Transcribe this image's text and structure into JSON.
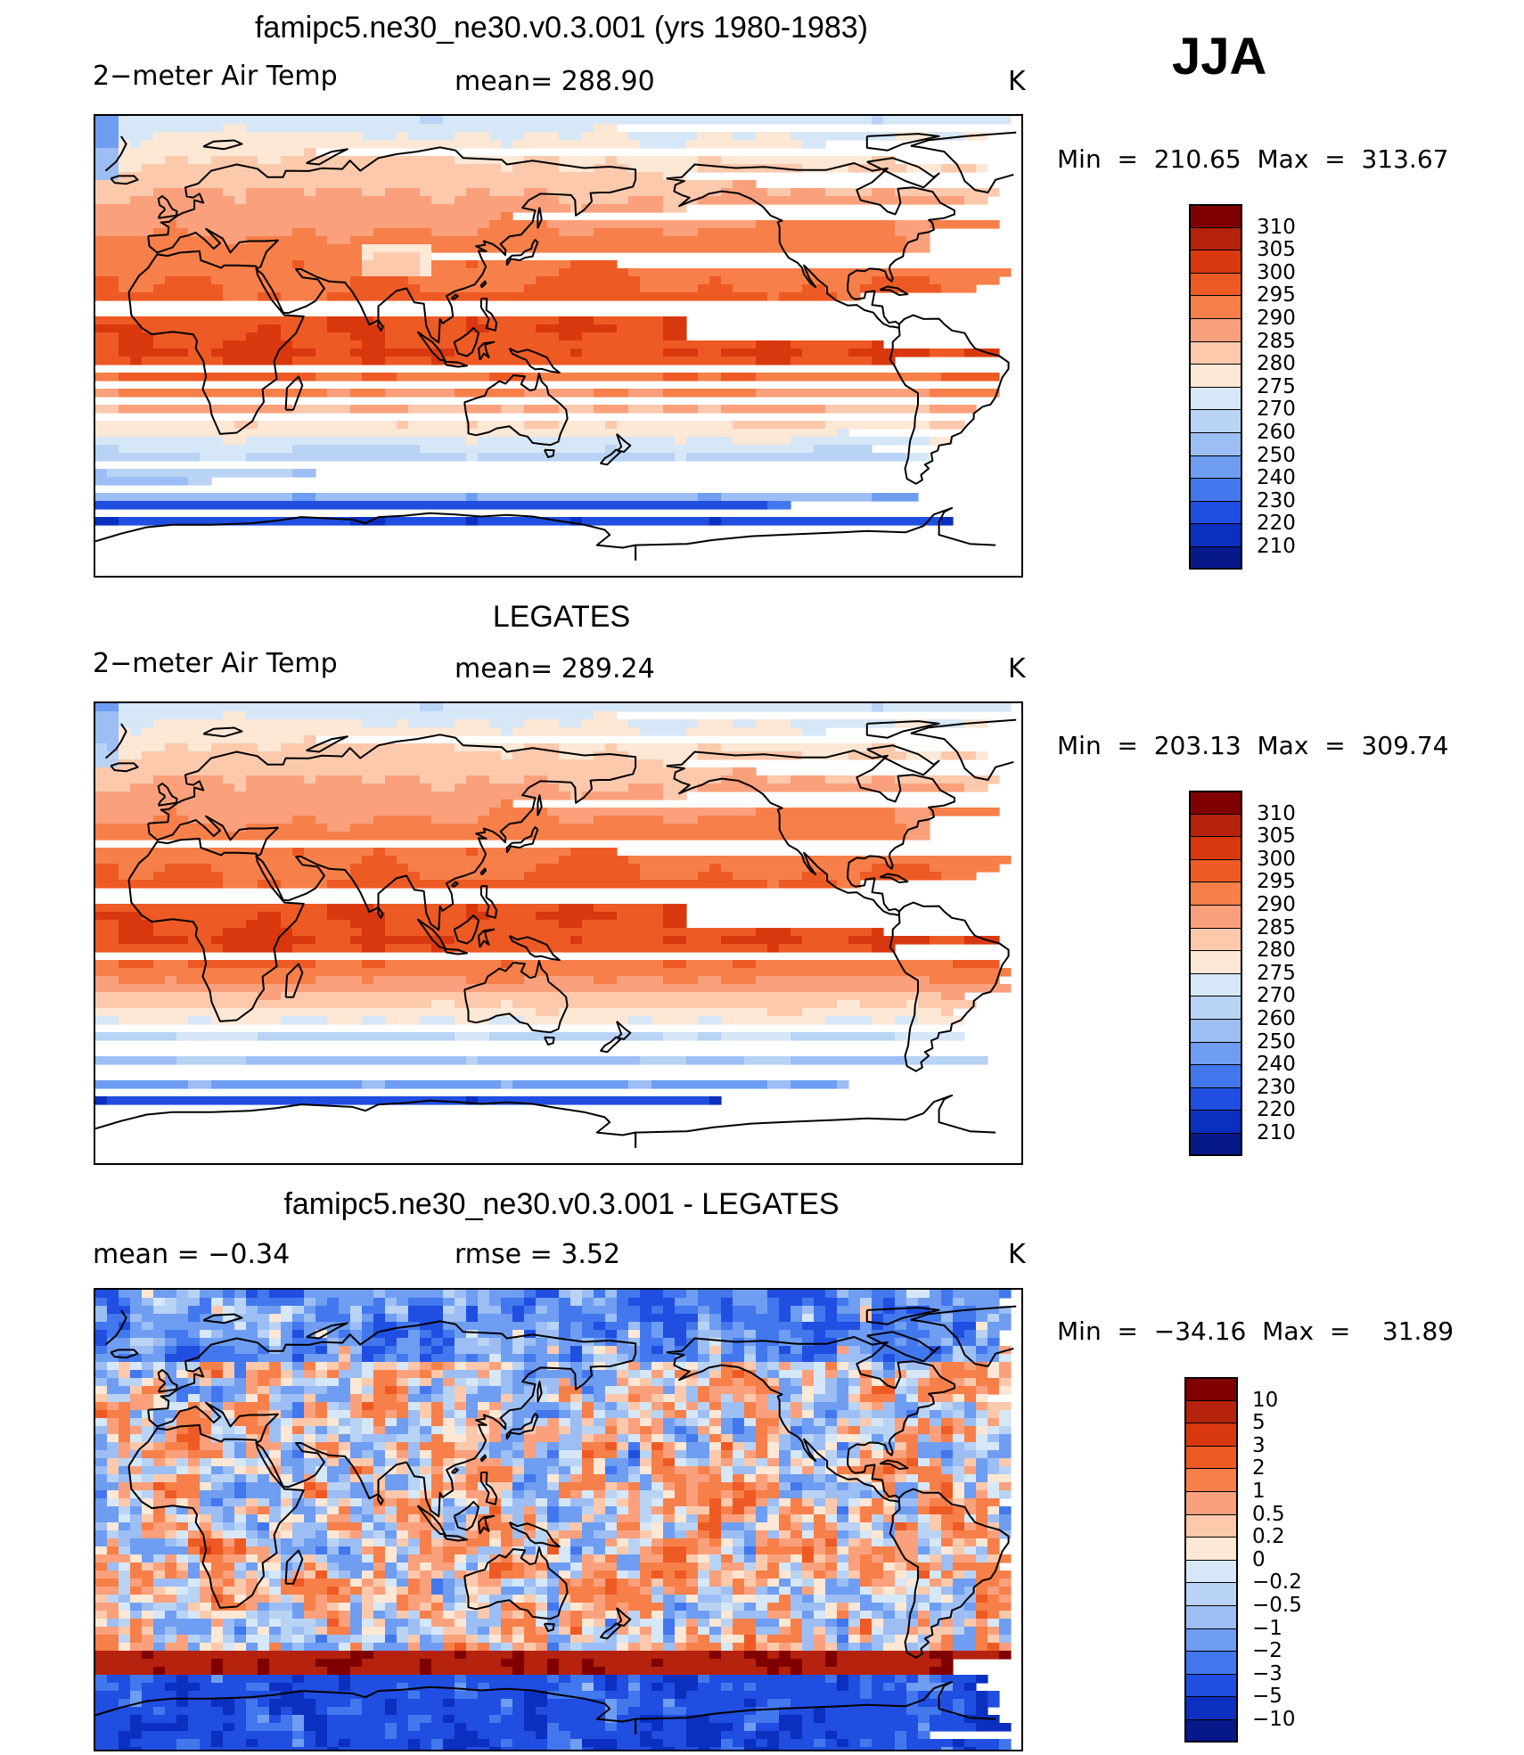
{
  "season": "JJA",
  "panels": [
    {
      "title": "famipc5.ne30_ne30.v0.3.001 (yrs 1980-1983)",
      "left_label": "2−meter Air Temp",
      "center_label": "mean=  288.90",
      "units": "K",
      "minmax": "Min  =  210.65  Max  =  313.67",
      "map_type": "surface temperature",
      "colorbar": {
        "labels": [
          "310",
          "305",
          "300",
          "295",
          "290",
          "285",
          "280",
          "275",
          "270",
          "260",
          "250",
          "240",
          "230",
          "220",
          "210"
        ],
        "colors": [
          "#800000",
          "#b5220d",
          "#d9380f",
          "#ee5a24",
          "#f77f4a",
          "#fba07c",
          "#fdc9ac",
          "#fde7d5",
          "#d6e7f7",
          "#b9d3f5",
          "#9cbef4",
          "#6e9df2",
          "#4277ee",
          "#1f4ee0",
          "#0b2fbf",
          "#07188a"
        ]
      }
    },
    {
      "title": "LEGATES",
      "left_label": "2−meter Air Temp",
      "center_label": "mean=  289.24",
      "units": "K",
      "minmax": "Min  =  203.13  Max  =  309.74",
      "map_type": "surface temperature",
      "colorbar": {
        "labels": [
          "310",
          "305",
          "300",
          "295",
          "290",
          "285",
          "280",
          "275",
          "270",
          "260",
          "250",
          "240",
          "230",
          "220",
          "210"
        ],
        "colors": [
          "#800000",
          "#b5220d",
          "#d9380f",
          "#ee5a24",
          "#f77f4a",
          "#fba07c",
          "#fdc9ac",
          "#fde7d5",
          "#d6e7f7",
          "#b9d3f5",
          "#9cbef4",
          "#6e9df2",
          "#4277ee",
          "#1f4ee0",
          "#0b2fbf",
          "#07188a"
        ]
      }
    },
    {
      "title": "famipc5.ne30_ne30.v0.3.001 - LEGATES",
      "left_label": "mean  =    −0.34",
      "center_label": "rmse  =     3.52",
      "units": "K",
      "minmax": "Min  =  −34.16  Max  =    31.89",
      "map_type": "difference",
      "colorbar": {
        "labels": [
          "10",
          "5",
          "3",
          "2",
          "1",
          "0.5",
          "0.2",
          "0",
          "−0.2",
          "−0.5",
          "−1",
          "−2",
          "−3",
          "−5",
          "−10"
        ],
        "colors": [
          "#800000",
          "#b5220d",
          "#d9380f",
          "#ee5a24",
          "#f77f4a",
          "#fba07c",
          "#fdc9ac",
          "#fde7d5",
          "#d6e7f7",
          "#b9d3f5",
          "#9cbef4",
          "#6e9df2",
          "#4277ee",
          "#1f4ee0",
          "#0b2fbf",
          "#07188a"
        ]
      }
    }
  ]
}
